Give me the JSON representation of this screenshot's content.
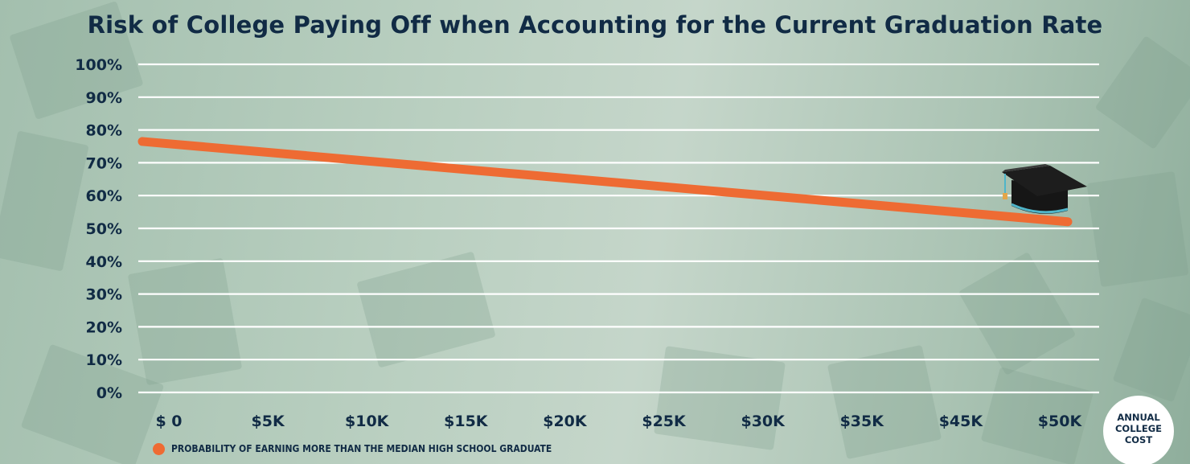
{
  "chart_data": {
    "type": "line",
    "title": "Risk of College Paying Off when Accounting for the Current Graduation Rate",
    "categories": [
      "$ 0",
      "$5K",
      "$10K",
      "$15K",
      "$20K",
      "$25K",
      "$30K",
      "$35K",
      "$45K",
      "$50K"
    ],
    "series": [
      {
        "name": "PROBABILITY OF EARNING MORE THAN THE MEDIAN HIGH SCHOOL GRADUATE",
        "color": "#ee6b33",
        "start_value": 76,
        "end_value": 53
      }
    ],
    "yticks": [
      "0%",
      "10%",
      "20%",
      "30%",
      "40%",
      "50%",
      "60%",
      "70%",
      "80%",
      "90%",
      "100%"
    ],
    "ylim": [
      0,
      100
    ],
    "xlabel": "ANNUAL\nCOLLEGE\nCOST",
    "ylabel": "",
    "grid": true,
    "legend_position": "bottom-left",
    "colors": {
      "text": "#112b45",
      "grid": "#ffffff",
      "line": "#ee6b33"
    },
    "decoration": "graduation-cap-icon at line end"
  }
}
